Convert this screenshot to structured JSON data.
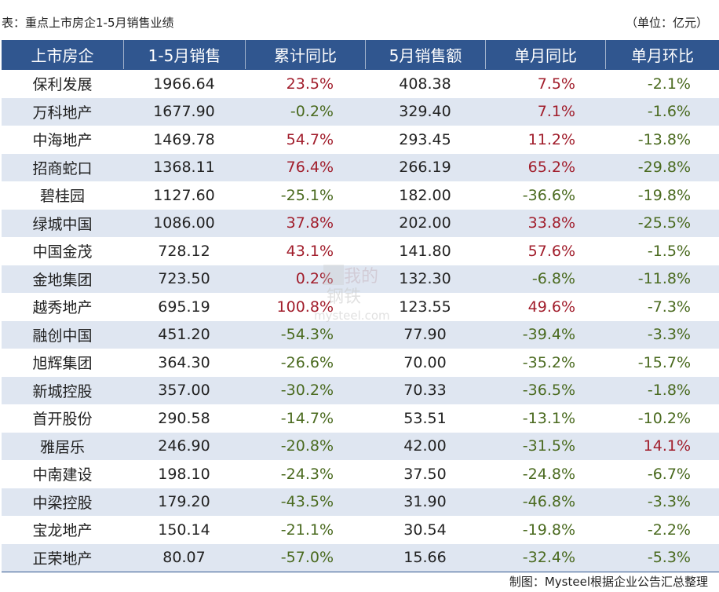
{
  "caption": "表：重点上市房企1-5月销售业绩",
  "unit": "（单位：亿元）",
  "footer": "制图：Mysteel根据企业公告汇总整理",
  "watermark": {
    "line1": "我的",
    "line2": "钢铁",
    "line3": "mysteel.com"
  },
  "colors": {
    "header_bg": "#30568f",
    "stripe": "#dfe6f1",
    "positive": "#a11d2b",
    "negative": "#4a6a1f"
  },
  "headers": [
    "上市房企",
    "1-5月销售",
    "累计同比",
    "5月销售额",
    "单月同比",
    "单月环比"
  ],
  "rows": [
    [
      "保利发展",
      "1966.64",
      "23.5%",
      "408.38",
      "7.5%",
      "-2.1%"
    ],
    [
      "万科地产",
      "1677.90",
      "-0.2%",
      "329.40",
      "7.1%",
      "-1.6%"
    ],
    [
      "中海地产",
      "1469.78",
      "54.7%",
      "293.45",
      "11.2%",
      "-13.8%"
    ],
    [
      "招商蛇口",
      "1368.11",
      "76.4%",
      "266.19",
      "65.2%",
      "-29.8%"
    ],
    [
      "碧桂园",
      "1127.60",
      "-25.1%",
      "182.00",
      "-36.6%",
      "-19.8%"
    ],
    [
      "绿城中国",
      "1086.00",
      "37.8%",
      "202.00",
      "33.8%",
      "-25.5%"
    ],
    [
      "中国金茂",
      "728.12",
      "43.1%",
      "141.80",
      "57.6%",
      "-1.5%"
    ],
    [
      "金地集团",
      "723.50",
      "0.2%",
      "132.30",
      "-6.8%",
      "-11.8%"
    ],
    [
      "越秀地产",
      "695.19",
      "100.8%",
      "123.55",
      "49.6%",
      "-7.3%"
    ],
    [
      "融创中国",
      "451.20",
      "-54.3%",
      "77.90",
      "-39.4%",
      "-3.3%"
    ],
    [
      "旭辉集团",
      "364.30",
      "-26.6%",
      "70.00",
      "-35.2%",
      "-15.7%"
    ],
    [
      "新城控股",
      "357.00",
      "-30.2%",
      "70.33",
      "-36.5%",
      "-1.8%"
    ],
    [
      "首开股份",
      "290.58",
      "-14.7%",
      "53.51",
      "-13.1%",
      "-10.2%"
    ],
    [
      "雅居乐",
      "246.90",
      "-20.8%",
      "42.00",
      "-31.5%",
      "14.1%"
    ],
    [
      "中南建设",
      "198.10",
      "-24.3%",
      "37.50",
      "-24.8%",
      "-6.7%"
    ],
    [
      "中梁控股",
      "179.20",
      "-43.5%",
      "31.90",
      "-46.8%",
      "-3.3%"
    ],
    [
      "宝龙地产",
      "150.14",
      "-21.1%",
      "30.54",
      "-19.8%",
      "-2.2%"
    ],
    [
      "正荣地产",
      "80.07",
      "-57.0%",
      "15.66",
      "-32.4%",
      "-5.3%"
    ]
  ]
}
